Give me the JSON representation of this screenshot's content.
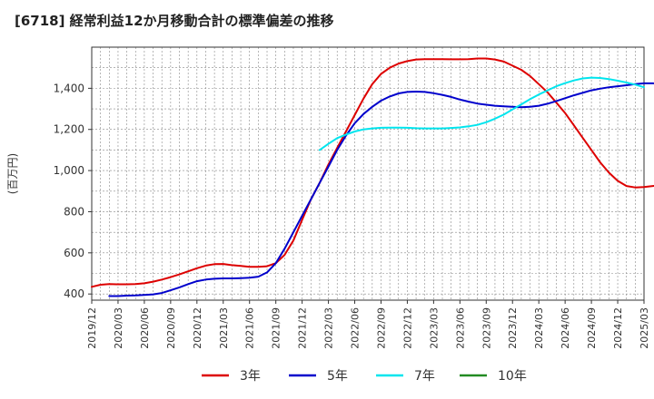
{
  "chart_data": {
    "type": "line",
    "title": "[6718]  経常利益12か月移動合計の標準偏差の推移",
    "ylabel": "(百万円)",
    "xlabel": "",
    "ylim": [
      370,
      1600
    ],
    "yticks": [
      400,
      600,
      800,
      1000,
      1200,
      1400
    ],
    "xticks": [
      "2019/12",
      "2020/03",
      "2020/06",
      "2020/09",
      "2020/12",
      "2021/03",
      "2021/06",
      "2021/09",
      "2021/12",
      "2022/03",
      "2022/06",
      "2022/09",
      "2022/12",
      "2023/03",
      "2023/06",
      "2023/09",
      "2023/12",
      "2024/03",
      "2024/06",
      "2024/09",
      "2024/12",
      "2025/03"
    ],
    "grid": true,
    "legend_position": "bottom",
    "series": [
      {
        "name": "3年",
        "color": "#dd0000",
        "start_month": "2019/12",
        "values": [
          435,
          445,
          448,
          447,
          447,
          448,
          452,
          460,
          470,
          482,
          495,
          510,
          525,
          538,
          545,
          546,
          540,
          536,
          532,
          532,
          535,
          550,
          590,
          660,
          760,
          860,
          940,
          1030,
          1110,
          1190,
          1270,
          1350,
          1420,
          1470,
          1500,
          1520,
          1532,
          1540,
          1542,
          1542,
          1542,
          1541,
          1541,
          1542,
          1545,
          1545,
          1540,
          1530,
          1510,
          1490,
          1460,
          1420,
          1380,
          1330,
          1280,
          1220,
          1160,
          1100,
          1040,
          990,
          950,
          925,
          918,
          920,
          925,
          930,
          930,
          928,
          928,
          930,
          928,
          922,
          912,
          900
        ]
      },
      {
        "name": "5年",
        "color": "#0000cc",
        "start_month": "2020/02",
        "values": [
          390,
          390,
          392,
          393,
          395,
          398,
          405,
          418,
          432,
          448,
          462,
          470,
          474,
          476,
          476,
          477,
          479,
          484,
          505,
          550,
          620,
          700,
          780,
          860,
          940,
          1020,
          1100,
          1170,
          1230,
          1275,
          1310,
          1340,
          1360,
          1375,
          1382,
          1384,
          1382,
          1376,
          1368,
          1358,
          1345,
          1335,
          1326,
          1320,
          1315,
          1312,
          1310,
          1308,
          1310,
          1315,
          1325,
          1338,
          1352,
          1366,
          1378,
          1390,
          1398,
          1405,
          1410,
          1415,
          1420,
          1424,
          1424,
          1422,
          1420,
          1418,
          1417,
          1416,
          1413
        ]
      },
      {
        "name": "7年",
        "color": "#00e5ee",
        "start_month": "2022/02",
        "values": [
          1100,
          1130,
          1158,
          1175,
          1190,
          1200,
          1205,
          1208,
          1209,
          1209,
          1208,
          1206,
          1205,
          1205,
          1205,
          1207,
          1210,
          1215,
          1222,
          1235,
          1252,
          1272,
          1297,
          1322,
          1347,
          1370,
          1390,
          1410,
          1425,
          1438,
          1448,
          1452,
          1450,
          1445,
          1437,
          1428,
          1418,
          1405
        ]
      },
      {
        "name": "10年",
        "color": "#228b22",
        "start_month": "",
        "values": []
      }
    ]
  }
}
